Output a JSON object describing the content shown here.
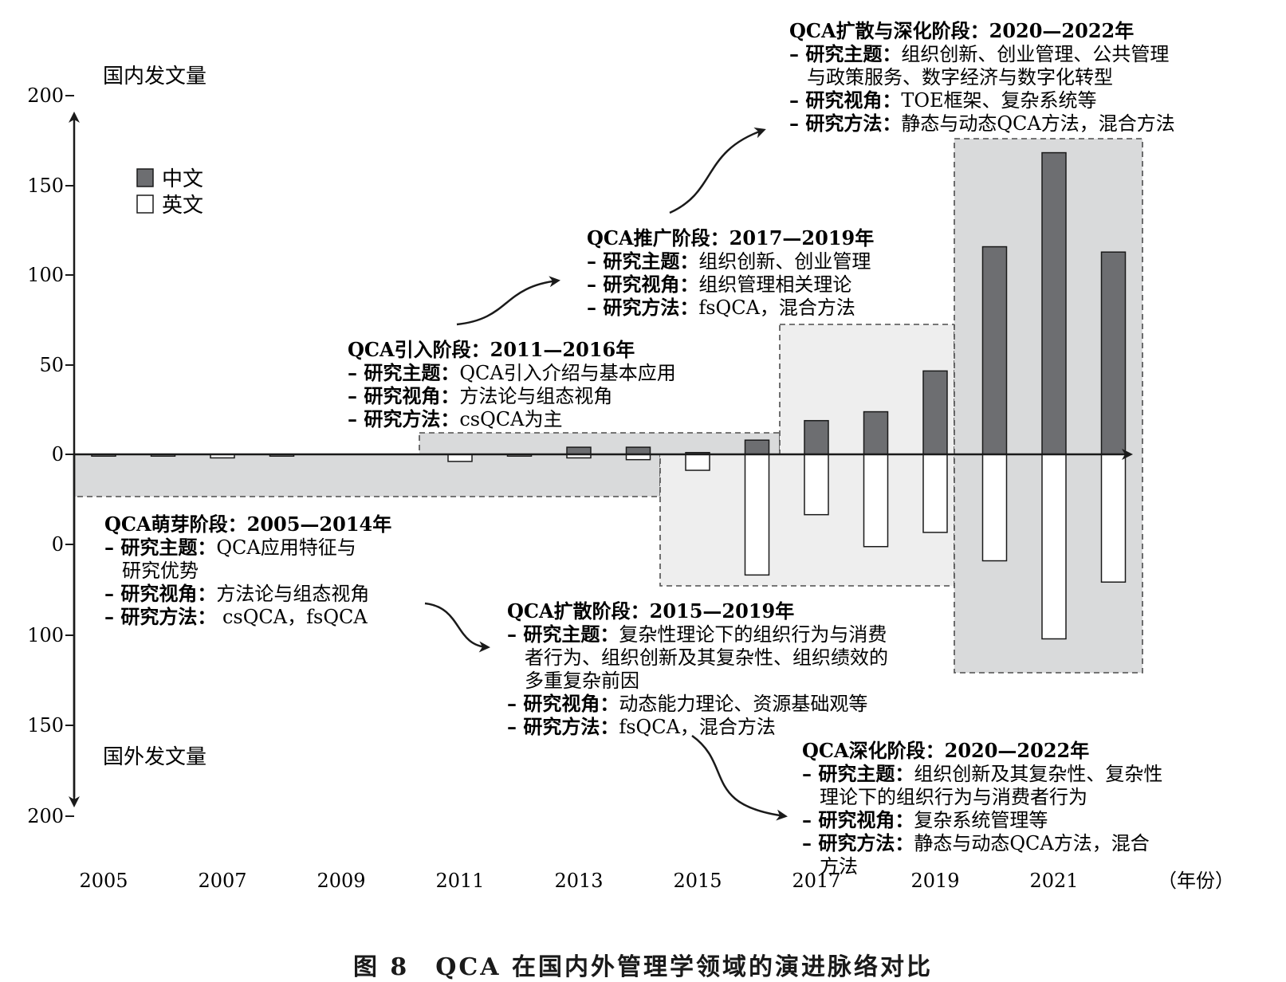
{
  "chart_data": {
    "type": "bar",
    "categories": [
      "2005",
      "2006",
      "2007",
      "2008",
      "2009",
      "2010",
      "2011",
      "2012",
      "2013",
      "2014",
      "2015",
      "2016",
      "2017",
      "2018",
      "2019",
      "2020",
      "2021",
      "2022"
    ],
    "x_tick_labels": [
      "2005",
      "2007",
      "2009",
      "2011",
      "2013",
      "2015",
      "2017",
      "2019",
      "2021"
    ],
    "x_unit": "（年份）",
    "series": [
      {
        "name": "中文",
        "direction": "up",
        "color": "#6d6e71",
        "values": [
          0,
          0,
          0,
          0,
          0,
          0,
          0,
          0,
          4,
          4,
          1,
          8,
          19,
          24,
          47,
          117,
          170,
          114
        ]
      },
      {
        "name": "英文",
        "direction": "down",
        "color": "#ffffff",
        "values": [
          1,
          1,
          2,
          1,
          0,
          0,
          4,
          1,
          2,
          3,
          9,
          68,
          34,
          52,
          44,
          60,
          104,
          72
        ]
      }
    ],
    "y_upper_label": "国内发文量",
    "y_lower_label": "国外发文量",
    "y_ticks_upper": [
      "200",
      "150",
      "100",
      "50",
      "0"
    ],
    "y_ticks_lower": [
      "0",
      "100",
      "150",
      "200"
    ],
    "ylim": [
      -200,
      200
    ],
    "legend": {
      "placement": "top-left",
      "items": [
        "中文",
        "英文"
      ]
    },
    "stages": [
      {
        "title": "QCA扩散与深化阶段：2020—2022年",
        "lines": [
          {
            "k": "– 研究主题：",
            "v": "组织创新、创业管理、公共管理"
          },
          {
            "k": "",
            "v": "与政策服务、数字经济与数字化转型"
          },
          {
            "k": "– 研究视角：",
            "v": "TOE框架、复杂系统等"
          },
          {
            "k": "– 研究方法：",
            "v": "静态与动态QCA方法，混合方法"
          }
        ]
      },
      {
        "title": "QCA推广阶段：2017—2019年",
        "lines": [
          {
            "k": "– 研究主题：",
            "v": "组织创新、创业管理"
          },
          {
            "k": "– 研究视角：",
            "v": "组织管理相关理论"
          },
          {
            "k": "– 研究方法：",
            "v": "fsQCA，混合方法"
          }
        ]
      },
      {
        "title": "QCA引入阶段：2011—2016年",
        "lines": [
          {
            "k": "– 研究主题：",
            "v": "QCA引入介绍与基本应用"
          },
          {
            "k": "– 研究视角：",
            "v": "方法论与组态视角"
          },
          {
            "k": "– 研究方法：",
            "v": "csQCA为主"
          }
        ]
      },
      {
        "title": "QCA萌芽阶段：2005—2014年",
        "lines": [
          {
            "k": "– 研究主题：",
            "v": "QCA应用特征与"
          },
          {
            "k": "",
            "v": "研究优势"
          },
          {
            "k": "– 研究视角：",
            "v": "方法论与组态视角"
          },
          {
            "k": "– 研究方法：",
            "v": " csQCA，fsQCA"
          }
        ]
      },
      {
        "title": "QCA扩散阶段：2015—2019年",
        "lines": [
          {
            "k": "– 研究主题：",
            "v": "复杂性理论下的组织行为与消费"
          },
          {
            "k": "",
            "v": "者行为、组织创新及其复杂性、组织绩效的"
          },
          {
            "k": "",
            "v": "多重复杂前因"
          },
          {
            "k": "– 研究视角：",
            "v": "动态能力理论、资源基础观等"
          },
          {
            "k": "– 研究方法：",
            "v": "fsQCA，混合方法"
          }
        ]
      },
      {
        "title": "QCA深化阶段：2020—2022年",
        "lines": [
          {
            "k": "– 研究主题：",
            "v": "组织创新及其复杂性、复杂性"
          },
          {
            "k": "",
            "v": "理论下的组织行为与消费者行为"
          },
          {
            "k": "– 研究视角：",
            "v": "复杂系统管理等"
          },
          {
            "k": "– 研究方法：",
            "v": "静态与动态QCA方法，混合"
          },
          {
            "k": "",
            "v": "方法"
          }
        ]
      }
    ]
  },
  "caption": "图 8　QCA 在国内外管理学领域的演进脉络对比"
}
